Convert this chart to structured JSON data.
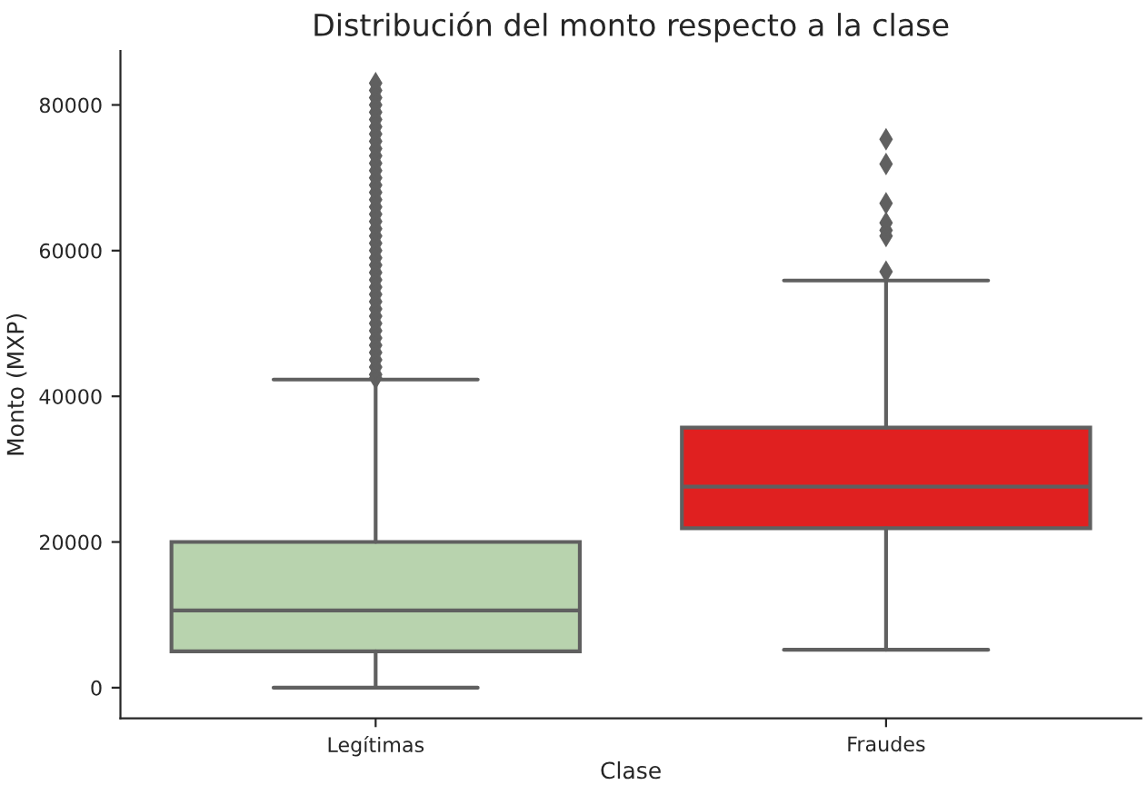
{
  "chart_data": {
    "type": "box",
    "title": "Distribución del monto respecto a la clase",
    "xlabel": "Clase",
    "ylabel": "Monto (MXP)",
    "categories": [
      "Legítimas",
      "Fraudes"
    ],
    "colors": [
      "#b8d3ae",
      "#e02020"
    ],
    "boxes": [
      {
        "low": 0,
        "q1": 5000,
        "median": 10600,
        "q3": 20000,
        "high": 42300,
        "outliers": [
          42500,
          43000,
          44000,
          45000,
          46000,
          47000,
          48000,
          49000,
          50000,
          51000,
          52000,
          53000,
          54000,
          55000,
          56000,
          57000,
          58000,
          59000,
          60000,
          61000,
          62000,
          63000,
          64000,
          65000,
          66000,
          67000,
          68000,
          69000,
          70000,
          71000,
          72000,
          73000,
          74000,
          75000,
          76000,
          77000,
          78000,
          79000,
          80000,
          81000,
          82000,
          83000
        ]
      },
      {
        "low": 5200,
        "q1": 21900,
        "median": 27600,
        "q3": 35700,
        "high": 55900,
        "outliers": [
          57100,
          62000,
          62800,
          63800,
          66500,
          71900,
          75300
        ]
      }
    ],
    "ylim": [
      -4200,
      87400
    ],
    "yticks": [
      0,
      20000,
      40000,
      60000,
      80000
    ],
    "grid": false,
    "marker": "diamond"
  }
}
